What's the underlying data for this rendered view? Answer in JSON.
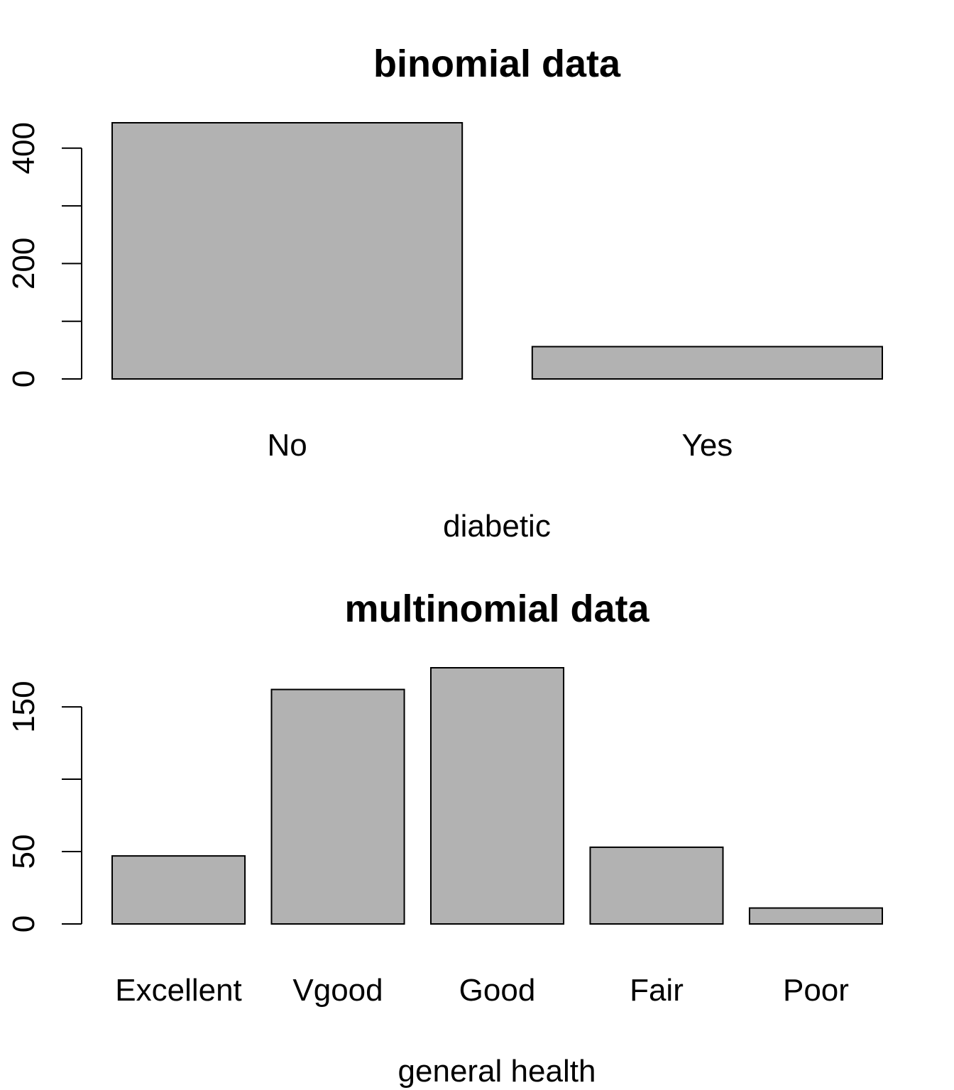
{
  "chart_data": [
    {
      "type": "bar",
      "title": "binomial data",
      "xlabel": "diabetic",
      "ylabel": "",
      "categories": [
        "No",
        "Yes"
      ],
      "values": [
        444,
        56
      ],
      "yticks": [
        0,
        100,
        200,
        300,
        400
      ],
      "ytick_labels": [
        "0",
        "",
        "200",
        "",
        "400"
      ],
      "ylim": [
        0,
        444
      ]
    },
    {
      "type": "bar",
      "title": "multinomial data",
      "xlabel": "general health",
      "ylabel": "",
      "categories": [
        "Excellent",
        "Vgood",
        "Good",
        "Fair",
        "Poor"
      ],
      "values": [
        47,
        162,
        177,
        53,
        11
      ],
      "yticks": [
        0,
        50,
        100,
        150
      ],
      "ytick_labels": [
        "0",
        "50",
        "",
        "150"
      ],
      "ylim": [
        0,
        177
      ]
    }
  ],
  "colors": {
    "bar_fill": "#b2b2b2",
    "bar_stroke": "#000000"
  }
}
